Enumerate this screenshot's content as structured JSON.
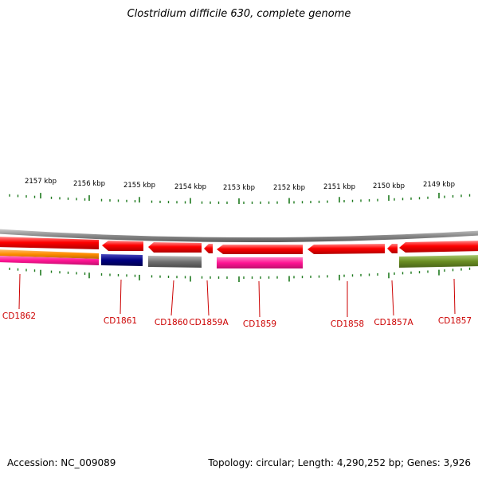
{
  "title": "Clostridium difficile 630, complete genome",
  "footer": {
    "accession": "Accession: NC_009089",
    "summary": "Topology: circular; Length: 4,290,252 bp; Genes: 3,926"
  },
  "ruler": {
    "labels": [
      "2157 kbp",
      "2156 kbp",
      "2155 kbp",
      "2154 kbp",
      "2153 kbp",
      "2152 kbp",
      "2151 kbp",
      "2150 kbp",
      "2149 kbp"
    ]
  },
  "genes": [
    {
      "label": "CD1862",
      "color": "#ff0000"
    },
    {
      "label": "CD1861",
      "color": "#ff0000"
    },
    {
      "label": "CD1860",
      "color": "#ff0000"
    },
    {
      "label": "CD1859A",
      "color": "#ff0000"
    },
    {
      "label": "CD1859",
      "color": "#ff0000"
    },
    {
      "label": "CD1858",
      "color": "#ff0000"
    },
    {
      "label": "CD1857A",
      "color": "#ff0000"
    },
    {
      "label": "CD1857",
      "color": "#ff0000"
    }
  ],
  "colors": {
    "cds": "#ff0000",
    "backbone": "#8c8c8c",
    "tick": "#1e7a1e",
    "label": "#cc0000",
    "orange": "#ff8c00",
    "pink": "#ff1493",
    "navy": "#000080",
    "grey": "#707070",
    "olive": "#6b8e23"
  }
}
